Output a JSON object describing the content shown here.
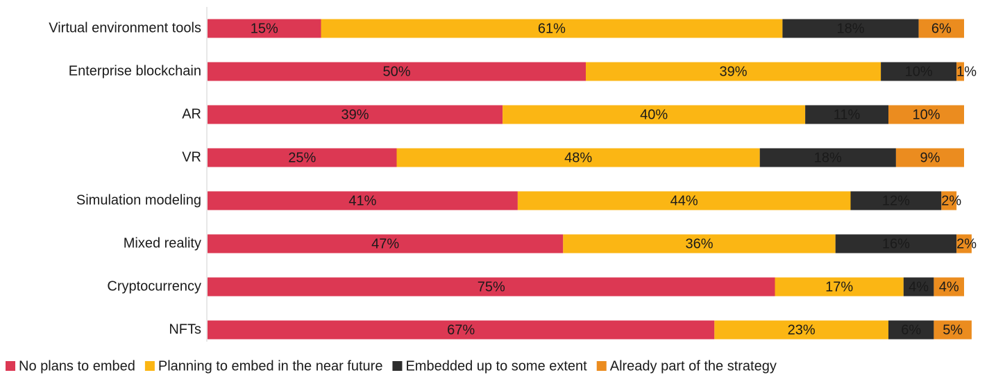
{
  "chart_data": {
    "type": "stacked-bar-horizontal",
    "categories": [
      "Virtual environment tools",
      "Enterprise blockchain",
      "AR",
      "VR",
      "Simulation modeling",
      "Mixed reality",
      "Cryptocurrency",
      "NFTs"
    ],
    "series": [
      {
        "name": "No plans to embed",
        "color": "#dc3853",
        "label_color": "#ffffff",
        "values": [
          15,
          50,
          39,
          25,
          41,
          47,
          75,
          67
        ],
        "value_labels": [
          "15%",
          "50%",
          "39%",
          "25%",
          "41%",
          "47%",
          "75%",
          "67%"
        ]
      },
      {
        "name": "Planning to embed in the near future",
        "color": "#fbb614",
        "label_color": "#1a1a1a",
        "values": [
          61,
          39,
          40,
          48,
          44,
          36,
          17,
          23
        ],
        "value_labels": [
          "61%",
          "39%",
          "40%",
          "48%",
          "44%",
          "36%",
          "17%",
          "23%"
        ]
      },
      {
        "name": "Embedded up to some extent",
        "color": "#2d2d2d",
        "label_color": "#ffffff",
        "values": [
          18,
          10,
          11,
          18,
          12,
          16,
          4,
          6
        ],
        "value_labels": [
          "18%",
          "10%",
          "11%",
          "18%",
          "12%",
          "16%",
          "4%",
          "6%"
        ]
      },
      {
        "name": "Already part of the strategy",
        "color": "#eb8c1f",
        "label_color": "#1a1a1a",
        "values": [
          6,
          1,
          10,
          9,
          2,
          2,
          4,
          5
        ],
        "value_labels": [
          "6%",
          "1%",
          "10%",
          "9%",
          "2%",
          "2%",
          "4%",
          "5%"
        ]
      }
    ],
    "legend": "bottom"
  }
}
